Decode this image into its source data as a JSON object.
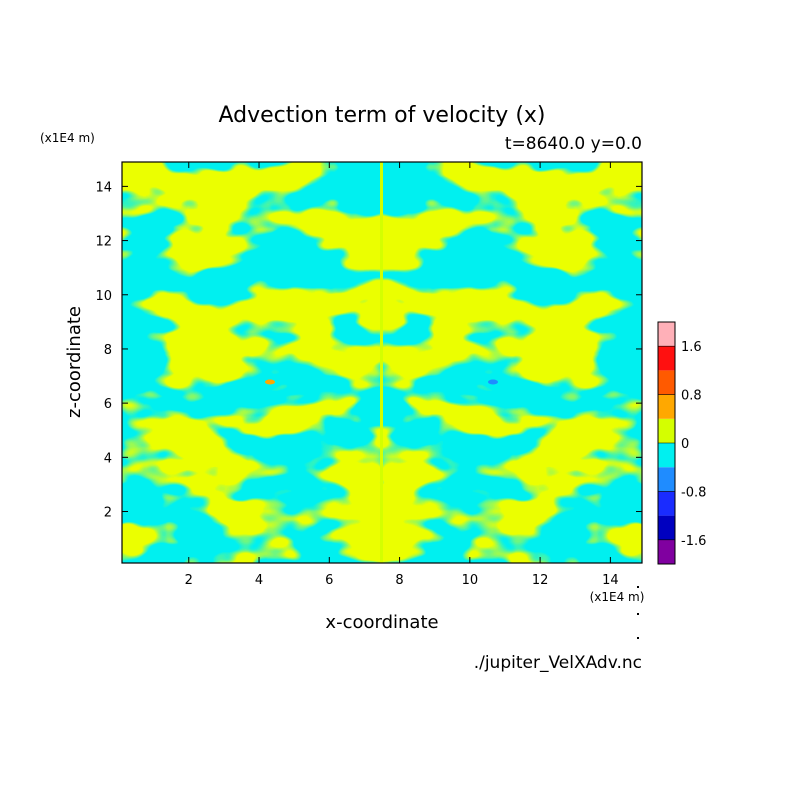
{
  "chart_data": {
    "type": "heatmap",
    "title": "Advection term of velocity (x)",
    "subtitle": "t=8640.0 y=0.0",
    "xlabel": "x-coordinate",
    "ylabel": "z-coordinate",
    "x_unit": "(x1E4 m)",
    "y_unit": "(x1E4 m)",
    "xlim": [
      0.1,
      14.9
    ],
    "ylim": [
      0.1,
      14.9
    ],
    "xticks": [
      2,
      4,
      6,
      8,
      10,
      12,
      14
    ],
    "yticks": [
      2,
      4,
      6,
      8,
      10,
      12,
      14
    ],
    "colorbar": {
      "levels": [
        -2.0,
        -1.6,
        -1.2,
        -0.8,
        -0.4,
        0,
        0.4,
        0.8,
        1.2,
        1.6,
        2.0
      ],
      "colors": [
        "#8000a0",
        "#0000c0",
        "#1a2cff",
        "#1f8cff",
        "#00f0f0",
        "#d4ff00",
        "#ffa800",
        "#ff5a00",
        "#ff1010",
        "#ffb0b8"
      ],
      "tick_values": [
        -1.6,
        -0.8,
        0,
        0.8,
        1.6
      ],
      "tick_labels": [
        "-1.6",
        "-0.8",
        "0",
        "0.8",
        "1.6"
      ]
    },
    "dominant_fields": {
      "positive_color": "#d4ff00",
      "negative_color": "#00f0f0"
    },
    "grid": false
  },
  "footer": {
    "filename": "./jupiter_VelXAdv.nc"
  }
}
